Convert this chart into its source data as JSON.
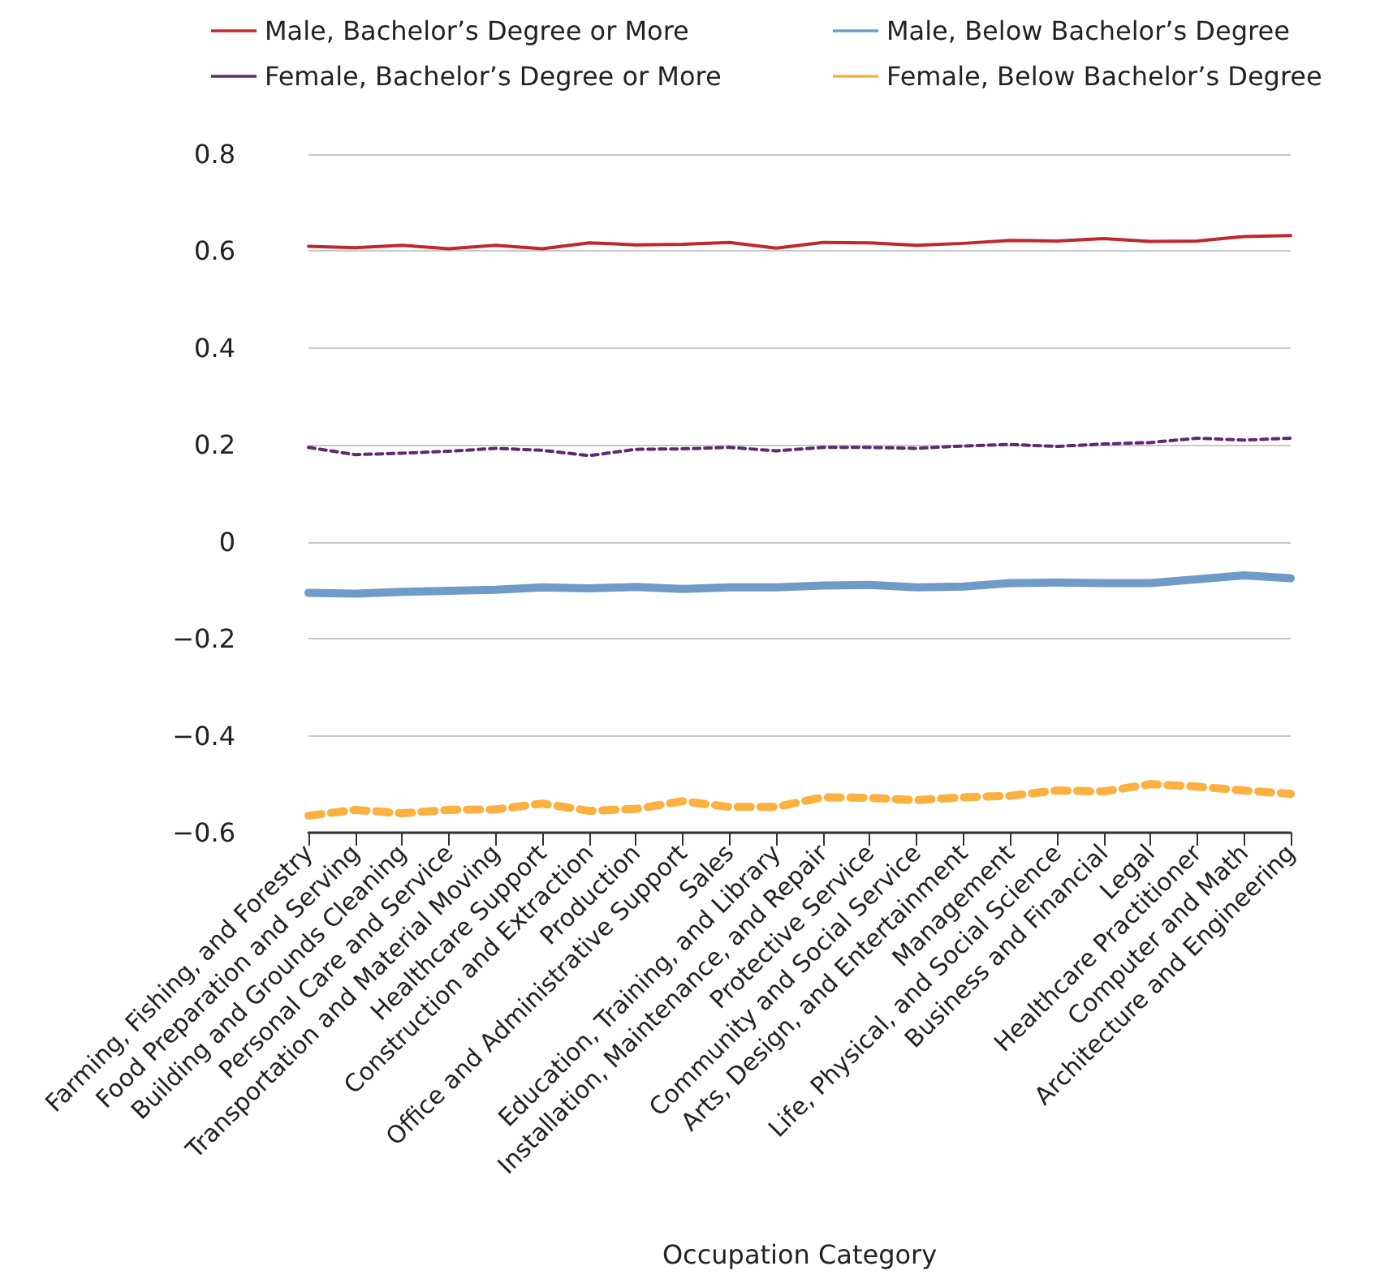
{
  "chart_data": {
    "type": "line",
    "xlabel": "Occupation Category",
    "categories": [
      "Farming, Fishing, and Forestry",
      "Food Preparation and Serving",
      "Building and Grounds Cleaning",
      "Personal Care and Service",
      "Transportation and Material Moving",
      "Healthcare Support",
      "Construction and Extraction",
      "Production",
      "Office and Administrative Support",
      "Sales",
      "Education, Training, and Library",
      "Installation, Maintenance, and Repair",
      "Protective Service",
      "Community and Social Service",
      "Arts, Design, and Entertainment",
      "Management",
      "Life, Physical, and Social Science",
      "Business and Financial",
      "Legal",
      "Healthcare Practitioner",
      "Computer and Math",
      "Architecture and Engineering"
    ],
    "series": [
      {
        "name": "Male, Bachelor’s Degree or More",
        "color": "#c1272d",
        "line_style": "solid",
        "values": [
          0.61,
          0.607,
          0.612,
          0.605,
          0.612,
          0.605,
          0.617,
          0.613,
          0.614,
          0.618,
          0.606,
          0.618,
          0.617,
          0.612,
          0.616,
          0.622,
          0.621,
          0.626,
          0.62,
          0.621,
          0.63,
          0.632
        ]
      },
      {
        "name": "Male, Below Bachelor’s Degree",
        "color": "#6f9bc9",
        "line_style": "solid",
        "values": [
          -0.105,
          -0.107,
          -0.103,
          -0.101,
          -0.099,
          -0.094,
          -0.096,
          -0.093,
          -0.097,
          -0.094,
          -0.094,
          -0.09,
          -0.089,
          -0.094,
          -0.092,
          -0.085,
          -0.084,
          -0.085,
          -0.085,
          -0.077,
          -0.069,
          -0.075
        ]
      },
      {
        "name": "Female, Bachelor’s Degree or More",
        "color": "#5e2a6e",
        "line_style": "dashed",
        "values": [
          0.195,
          0.18,
          0.183,
          0.187,
          0.193,
          0.189,
          0.178,
          0.191,
          0.192,
          0.195,
          0.188,
          0.195,
          0.195,
          0.193,
          0.198,
          0.201,
          0.197,
          0.202,
          0.205,
          0.214,
          0.21,
          0.214
        ]
      },
      {
        "name": "Female, Below Bachelor’s Degree",
        "color": "#fbb040",
        "line_style": "dashed",
        "values": [
          -0.565,
          -0.553,
          -0.56,
          -0.553,
          -0.552,
          -0.54,
          -0.555,
          -0.551,
          -0.535,
          -0.547,
          -0.547,
          -0.527,
          -0.528,
          -0.533,
          -0.527,
          -0.524,
          -0.513,
          -0.515,
          -0.5,
          -0.505,
          -0.513,
          -0.52
        ]
      }
    ],
    "ylim": [
      -0.6,
      0.8
    ],
    "yticks": [
      {
        "value": -0.6,
        "label": "−0.6"
      },
      {
        "value": -0.4,
        "label": "−0.4"
      },
      {
        "value": -0.2,
        "label": "−0.2"
      },
      0,
      0.2,
      0.4,
      0.6,
      0.8
    ],
    "grid": "y",
    "legend": "top",
    "marker": "none"
  }
}
